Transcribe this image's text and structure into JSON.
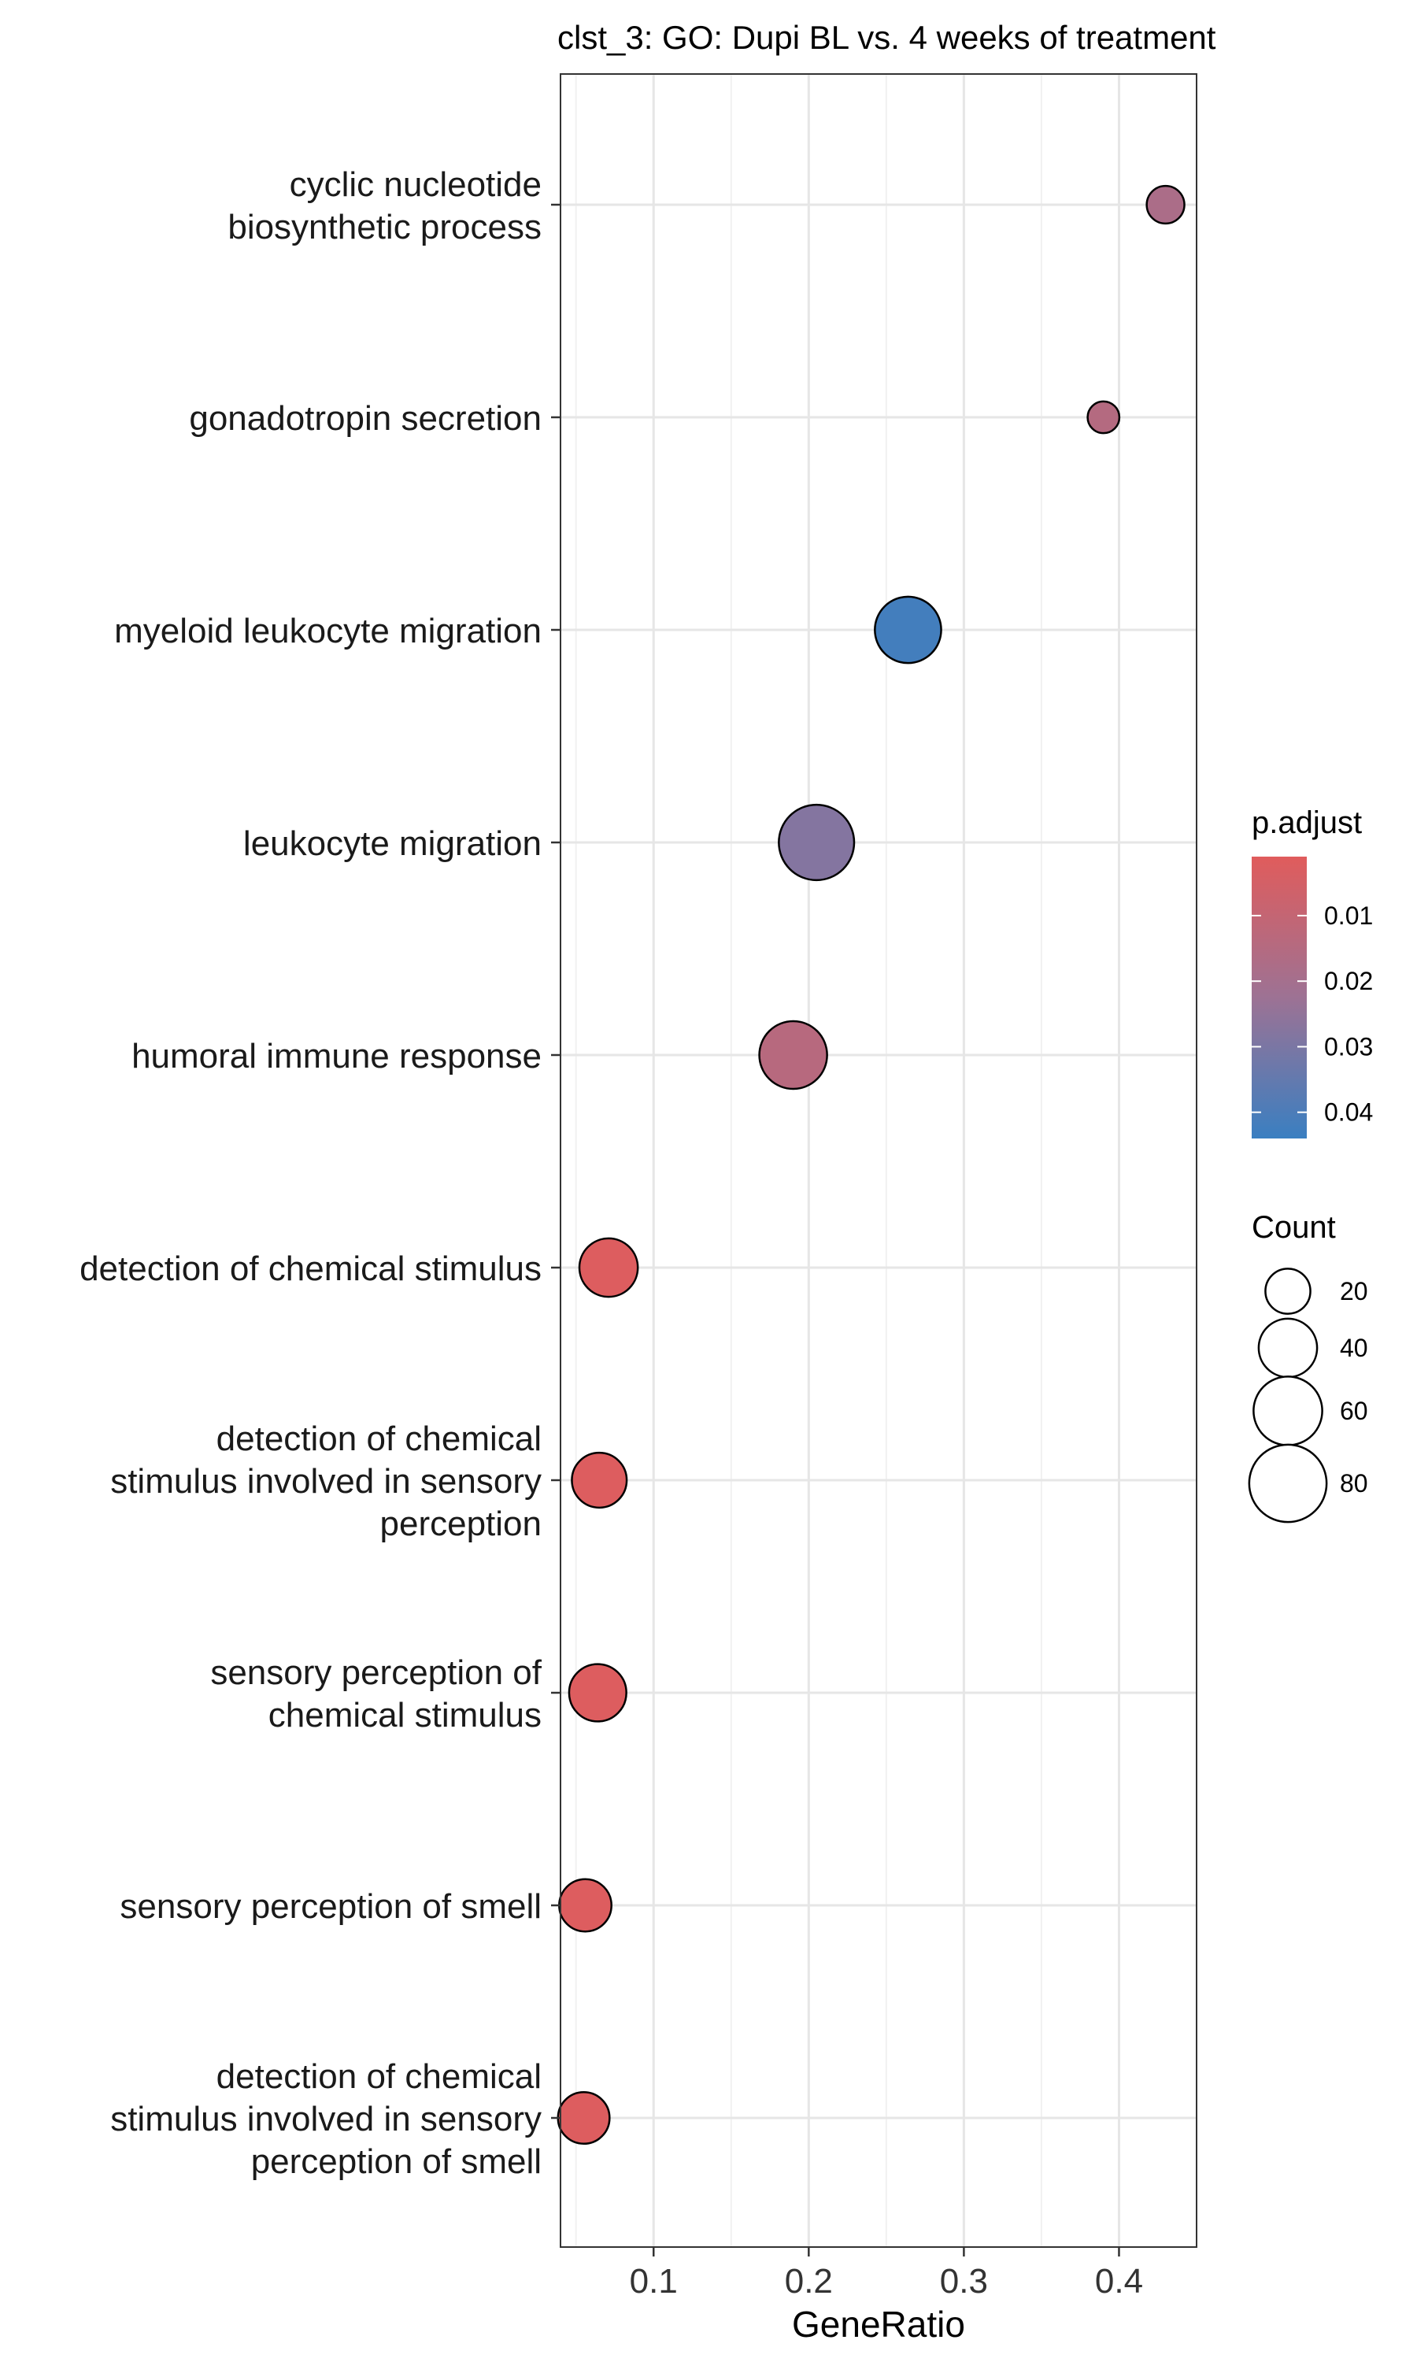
{
  "chart_data": {
    "type": "scatter",
    "title": "clst_3: GO: Dupi BL vs. 4 weeks of treatment",
    "xlabel": "GeneRatio",
    "ylabel": "",
    "xlim": [
      0.04,
      0.45
    ],
    "xticks": [
      "0.1",
      "0.2",
      "0.3",
      "0.4"
    ],
    "xtick_values": [
      0.1,
      0.2,
      0.3,
      0.4
    ],
    "grid": true,
    "categories": [
      [
        "cyclic nucleotide",
        "biosynthetic process"
      ],
      [
        "gonadotropin secretion"
      ],
      [
        "myeloid leukocyte migration"
      ],
      [
        "leukocyte migration"
      ],
      [
        "humoral immune response"
      ],
      [
        "detection of chemical stimulus"
      ],
      [
        "detection of chemical",
        "stimulus involved in sensory",
        "perception"
      ],
      [
        "sensory perception of",
        "chemical stimulus"
      ],
      [
        "sensory perception of smell"
      ],
      [
        "detection of chemical",
        "stimulus involved in sensory",
        "perception of smell"
      ]
    ],
    "points": [
      {
        "x": 0.43,
        "count": 12,
        "padjust": 0.018
      },
      {
        "x": 0.39,
        "count": 7,
        "padjust": 0.015
      },
      {
        "x": 0.264,
        "count": 55,
        "padjust": 0.042
      },
      {
        "x": 0.205,
        "count": 75,
        "padjust": 0.028
      },
      {
        "x": 0.19,
        "count": 58,
        "padjust": 0.014
      },
      {
        "x": 0.071,
        "count": 40,
        "padjust": 0.002
      },
      {
        "x": 0.065,
        "count": 34,
        "padjust": 0.002
      },
      {
        "x": 0.064,
        "count": 38,
        "padjust": 0.002
      },
      {
        "x": 0.056,
        "count": 30,
        "padjust": 0.002
      },
      {
        "x": 0.055,
        "count": 29,
        "padjust": 0.002
      }
    ],
    "color_legend": {
      "title": "p.adjust",
      "ticks": [
        "0.01",
        "0.02",
        "0.03",
        "0.04"
      ],
      "tick_values": [
        0.01,
        0.02,
        0.03,
        0.04
      ],
      "range": [
        0.001,
        0.044
      ],
      "low_color": "#e05c5c",
      "high_color": "#3a7fc1"
    },
    "size_legend": {
      "title": "Count",
      "ticks": [
        "20",
        "40",
        "60",
        "80"
      ],
      "tick_values": [
        20,
        40,
        60,
        80
      ]
    },
    "legend_placement": "right"
  }
}
